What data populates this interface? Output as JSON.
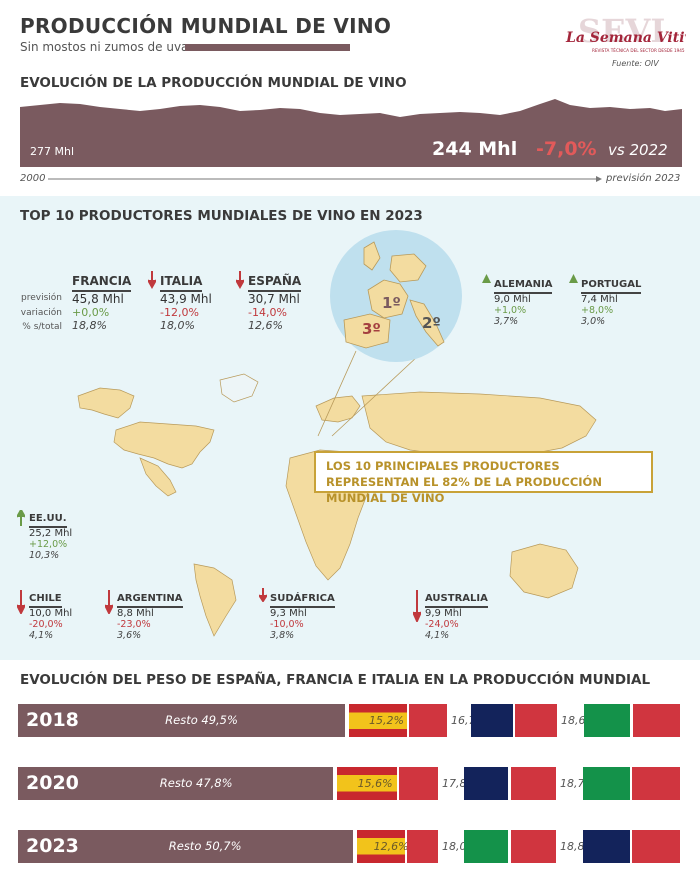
{
  "header": {
    "title": "PRODUCCIÓN MUNDIAL DE VINO",
    "subtitle": "Sin mostos ni zumos de uva",
    "logo_text": "La Semana Vitivinícola",
    "logo_sub": "REVISTA TÉCNICA DEL SECTOR DESDE 1945",
    "source": "Fuente: OIV"
  },
  "evolution": {
    "title": "EVOLUCIÓN DE LA PRODUCCIÓN MUNDIAL DE VINO",
    "start_value": "277 Mhl",
    "end_value": "244 Mhl",
    "change": "-7,0%",
    "vs": "vs 2022",
    "axis_start": "2000",
    "axis_end": "previsión 2023"
  },
  "top10": {
    "title": "TOP 10 PRODUCTORES MUNDIALES DE VINO EN 2023",
    "row_labels": [
      "previsión",
      "variación",
      "% s/total"
    ],
    "rank_labels": [
      "1º",
      "2º",
      "3º"
    ],
    "callout": "LOS 10 PRINCIPALES PRODUCTORES REPRESENTAN EL 82% DE LA PRODUCCIÓN MUNDIAL DE VINO"
  },
  "chart_data": [
    {
      "type": "area",
      "title": "EVOLUCIÓN DE LA PRODUCCIÓN MUNDIAL DE VINO",
      "x": [
        "2000",
        "previsión 2023"
      ],
      "values": [
        277,
        244
      ],
      "units": "Mhl",
      "change_vs_2022": "-7,0%"
    },
    {
      "type": "table",
      "title": "TOP 10 PRODUCTORES MUNDIALES DE VINO EN 2023",
      "countries": [
        {
          "name": "FRANCIA",
          "prevision": "45,8 Mhl",
          "variacion": "+0,0%",
          "share": "18,8%",
          "trend": "flat"
        },
        {
          "name": "ITALIA",
          "prevision": "43,9 Mhl",
          "variacion": "-12,0%",
          "share": "18,0%",
          "trend": "down"
        },
        {
          "name": "ESPAÑA",
          "prevision": "30,7 Mhl",
          "variacion": "-14,0%",
          "share": "12,6%",
          "trend": "down"
        },
        {
          "name": "ALEMANIA",
          "prevision": "9,0 Mhl",
          "variacion": "+1,0%",
          "share": "3,7%",
          "trend": "up"
        },
        {
          "name": "PORTUGAL",
          "prevision": "7,4 Mhl",
          "variacion": "+8,0%",
          "share": "3,0%",
          "trend": "up"
        },
        {
          "name": "EE.UU.",
          "prevision": "25,2 Mhl",
          "variacion": "+12,0%",
          "share": "10,3%",
          "trend": "up"
        },
        {
          "name": "CHILE",
          "prevision": "10,0 Mhl",
          "variacion": "-20,0%",
          "share": "4,1%",
          "trend": "down"
        },
        {
          "name": "ARGENTINA",
          "prevision": "8,8 Mhl",
          "variacion": "-23,0%",
          "share": "3,6%",
          "trend": "down"
        },
        {
          "name": "SUDÁFRICA",
          "prevision": "9,3 Mhl",
          "variacion": "-10,0%",
          "share": "3,8%",
          "trend": "down"
        },
        {
          "name": "AUSTRALIA",
          "prevision": "9,9 Mhl",
          "variacion": "-24,0%",
          "share": "4,1%",
          "trend": "down"
        }
      ]
    },
    {
      "type": "bar",
      "stacked": true,
      "title": "EVOLUCIÓN DEL PESO DE ESPAÑA, FRANCIA E ITALIA EN LA PRODUCCIÓN MUNDIAL",
      "rows": [
        {
          "year": "2018",
          "resto": 49.5,
          "resto_label": "Resto 49,5%",
          "parts": [
            {
              "country": "España",
              "value": 15.2,
              "label": "15,2%"
            },
            {
              "country": "Francia",
              "value": 16.7,
              "label": "16,7%"
            },
            {
              "country": "Italia",
              "value": 18.6,
              "label": "18,6%"
            }
          ]
        },
        {
          "year": "2020",
          "resto": 47.8,
          "resto_label": "Resto 47,8%",
          "parts": [
            {
              "country": "España",
              "value": 15.6,
              "label": "15,6%"
            },
            {
              "country": "Francia",
              "value": 17.8,
              "label": "17,8%"
            },
            {
              "country": "Italia",
              "value": 18.7,
              "label": "18,7%"
            }
          ]
        },
        {
          "year": "2023",
          "resto": 50.7,
          "resto_label": "Resto 50,7%",
          "parts": [
            {
              "country": "España",
              "value": 12.6,
              "label": "12,6%"
            },
            {
              "country": "Italia",
              "value": 18.0,
              "label": "18,0%"
            },
            {
              "country": "Francia",
              "value": 18.8,
              "label": "18,8%"
            }
          ]
        }
      ]
    }
  ],
  "share": {
    "title": "EVOLUCIÓN DEL PESO DE ESPAÑA, FRANCIA E ITALIA EN LA PRODUCCIÓN MUNDIAL"
  },
  "colors": {
    "maroon": "#7a5a5f",
    "gold": "#c8a238",
    "spain_red": "#c8282e",
    "spain_yellow": "#f2c31b",
    "france_blue": "#13235b",
    "italy_green": "#14924a",
    "red": "#d0353f",
    "up_green": "#6a9b48",
    "map_land": "#f3dca0",
    "map_water": "#e9f5f8"
  }
}
